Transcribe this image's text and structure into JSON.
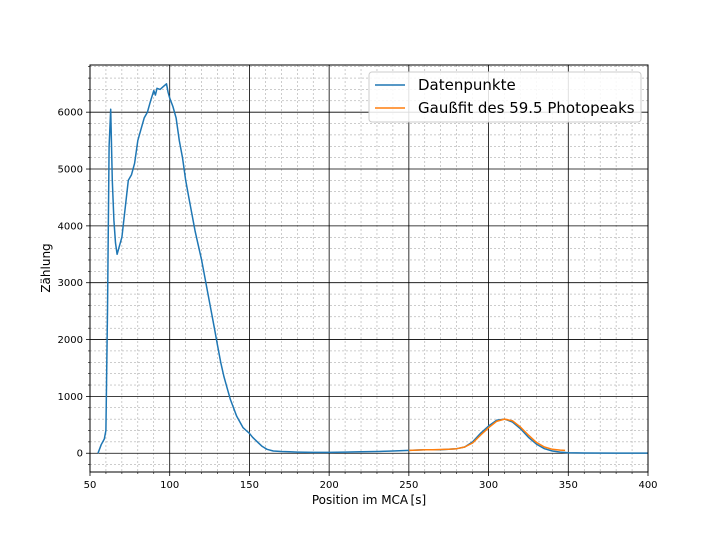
{
  "chart_data": {
    "type": "line",
    "title": "",
    "xlabel": "Position im MCA [s]",
    "ylabel": "Zählung",
    "xlim": [
      50,
      400
    ],
    "ylim": [
      -330,
      6830
    ],
    "xticks": [
      50,
      100,
      150,
      200,
      250,
      300,
      350,
      400
    ],
    "yticks": [
      0,
      1000,
      2000,
      3000,
      4000,
      5000,
      6000
    ],
    "grid": {
      "major": true,
      "minor": true
    },
    "legend_position": "top-right",
    "series": [
      {
        "name": "Datenpunkte",
        "color": "#1f77b4",
        "x": [
          55,
          57,
          59,
          60,
          61,
          62,
          63,
          64,
          65,
          66,
          67,
          68,
          70,
          72,
          74,
          76,
          78,
          80,
          82,
          84,
          86,
          88,
          90,
          91,
          92,
          94,
          96,
          98,
          99,
          100,
          102,
          104,
          106,
          108,
          110,
          112,
          114,
          116,
          118,
          120,
          122,
          124,
          126,
          128,
          130,
          132,
          134,
          136,
          138,
          140,
          142,
          144,
          146,
          148,
          150,
          152,
          155,
          158,
          161,
          165,
          170,
          175,
          180,
          190,
          200,
          210,
          220,
          230,
          240,
          250,
          260,
          270,
          280,
          285,
          290,
          295,
          300,
          305,
          310,
          315,
          320,
          325,
          330,
          335,
          340,
          345,
          350,
          360,
          380,
          400
        ],
        "y": [
          0,
          150,
          250,
          400,
          2500,
          5400,
          6050,
          4800,
          4100,
          3700,
          3500,
          3600,
          3800,
          4300,
          4800,
          4900,
          5100,
          5500,
          5700,
          5900,
          6000,
          6200,
          6380,
          6300,
          6420,
          6400,
          6450,
          6500,
          6350,
          6250,
          6100,
          5900,
          5500,
          5200,
          4800,
          4500,
          4200,
          3900,
          3650,
          3400,
          3100,
          2800,
          2500,
          2200,
          1900,
          1600,
          1350,
          1150,
          950,
          800,
          650,
          550,
          450,
          400,
          350,
          280,
          200,
          120,
          70,
          40,
          30,
          25,
          20,
          15,
          15,
          20,
          25,
          30,
          40,
          50,
          60,
          60,
          80,
          110,
          200,
          350,
          480,
          580,
          600,
          550,
          430,
          280,
          160,
          80,
          40,
          20,
          10,
          5,
          3,
          2
        ]
      },
      {
        "name": "Gaußfit des 59.5 Photopeaks",
        "color": "#ff7f0e",
        "x": [
          250,
          255,
          260,
          265,
          270,
          275,
          280,
          285,
          290,
          295,
          300,
          305,
          310,
          315,
          320,
          325,
          330,
          335,
          340,
          345,
          348
        ],
        "y": [
          50,
          55,
          60,
          62,
          65,
          70,
          80,
          110,
          180,
          320,
          450,
          560,
          600,
          570,
          460,
          320,
          190,
          110,
          70,
          55,
          50
        ]
      }
    ]
  }
}
